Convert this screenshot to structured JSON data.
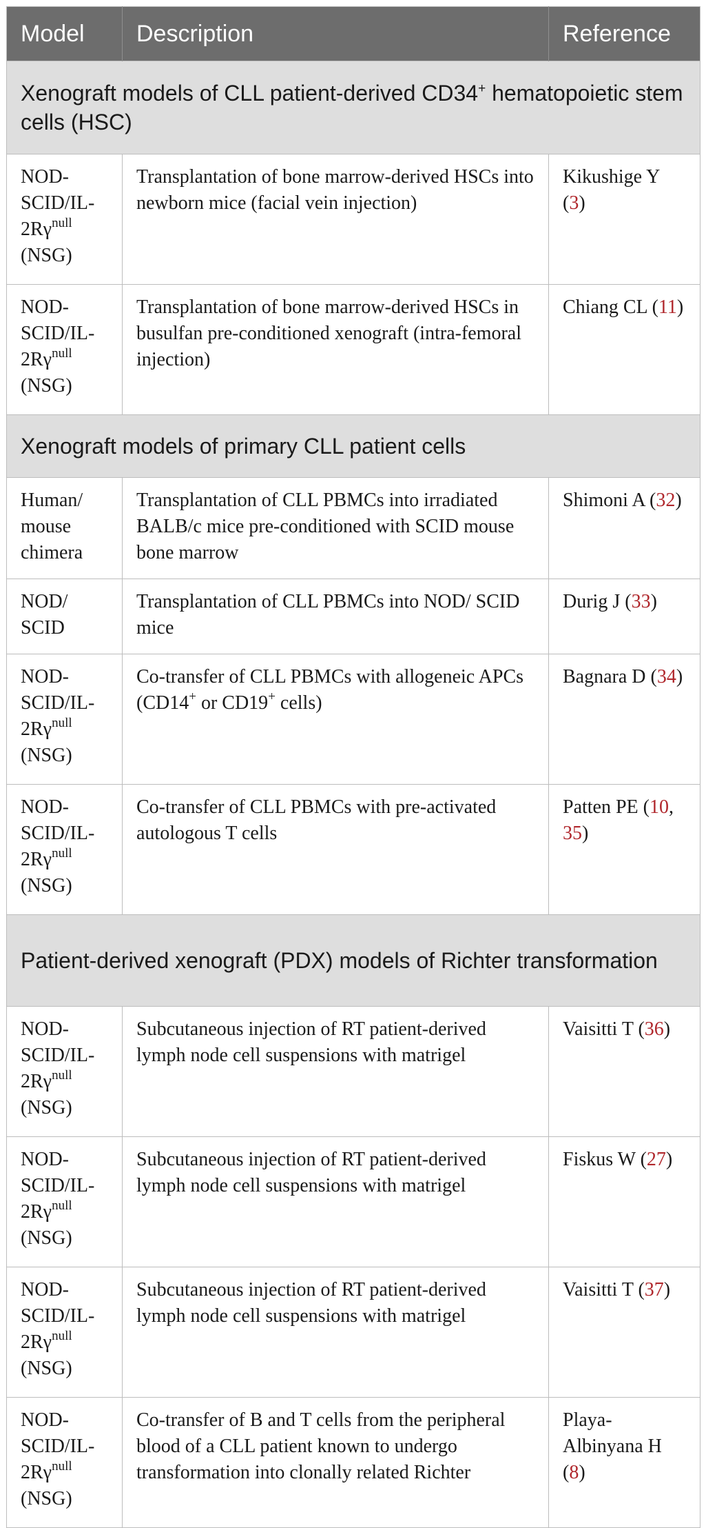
{
  "header": {
    "model": "Model",
    "description": "Description",
    "reference": "Reference"
  },
  "sections": [
    {
      "title_pre": "Xenograft models of CLL patient-derived CD34",
      "title_sup": "+",
      "title_post": " hematopoietic stem cells (HSC)"
    },
    {
      "title": "Xenograft models of primary CLL patient cells"
    },
    {
      "title": "Patient-derived xenograft (PDX) models of Richter transformation"
    }
  ],
  "nsg": {
    "line1": "NOD-",
    "line2": "SCID/IL-",
    "line3_pre": "2Rγ",
    "line3_sup": "null",
    "line4": "(NSG)"
  },
  "rows": [
    {
      "description": "Transplantation of bone marrow-derived HSCs into newborn mice (facial vein injection)",
      "ref_author": "Kikushige Y",
      "ref_nums": "3"
    },
    {
      "description": "Transplantation of bone marrow-derived HSCs in busulfan pre-conditioned xenograft (intra-femoral injection)",
      "ref_author": "Chiang CL",
      "ref_nums": "11"
    },
    {
      "model": "Human/ mouse chimera",
      "description": "Transplantation of CLL PBMCs into irradiated BALB/c mice pre-conditioned with SCID mouse bone marrow",
      "ref_author": "Shimoni A",
      "ref_nums": "32"
    },
    {
      "model": "NOD/ SCID",
      "description": "Transplantation of CLL PBMCs into NOD/ SCID mice",
      "ref_author": "Durig J",
      "ref_nums": "33"
    },
    {
      "description_pre": "Co-transfer of CLL PBMCs with allogeneic APCs (CD14",
      "description_sup1": "+",
      "description_mid": " or CD19",
      "description_sup2": "+",
      "description_post": " cells)",
      "ref_author": "Bagnara D",
      "ref_nums": "34"
    },
    {
      "description": "Co-transfer of CLL PBMCs with pre-activated autologous T cells",
      "ref_author": "Patten PE",
      "ref_num1": "10",
      "ref_num2": "35"
    },
    {
      "description": "Subcutaneous injection of RT patient-derived lymph node cell suspensions with matrigel",
      "ref_author": "Vaisitti T",
      "ref_nums": "36"
    },
    {
      "description": "Subcutaneous injection of RT patient-derived lymph node cell suspensions with matrigel",
      "ref_author": "Fiskus W",
      "ref_nums": "27"
    },
    {
      "description": "Subcutaneous injection of RT patient-derived lymph node cell suspensions with matrigel",
      "ref_author": "Vaisitti T",
      "ref_nums": "37"
    },
    {
      "description": "Co-transfer of B and T cells from the peripheral blood of a CLL patient known to undergo transformation into clonally related Richter",
      "ref_author": "Playa-Albinyana H",
      "ref_nums": "8"
    }
  ]
}
